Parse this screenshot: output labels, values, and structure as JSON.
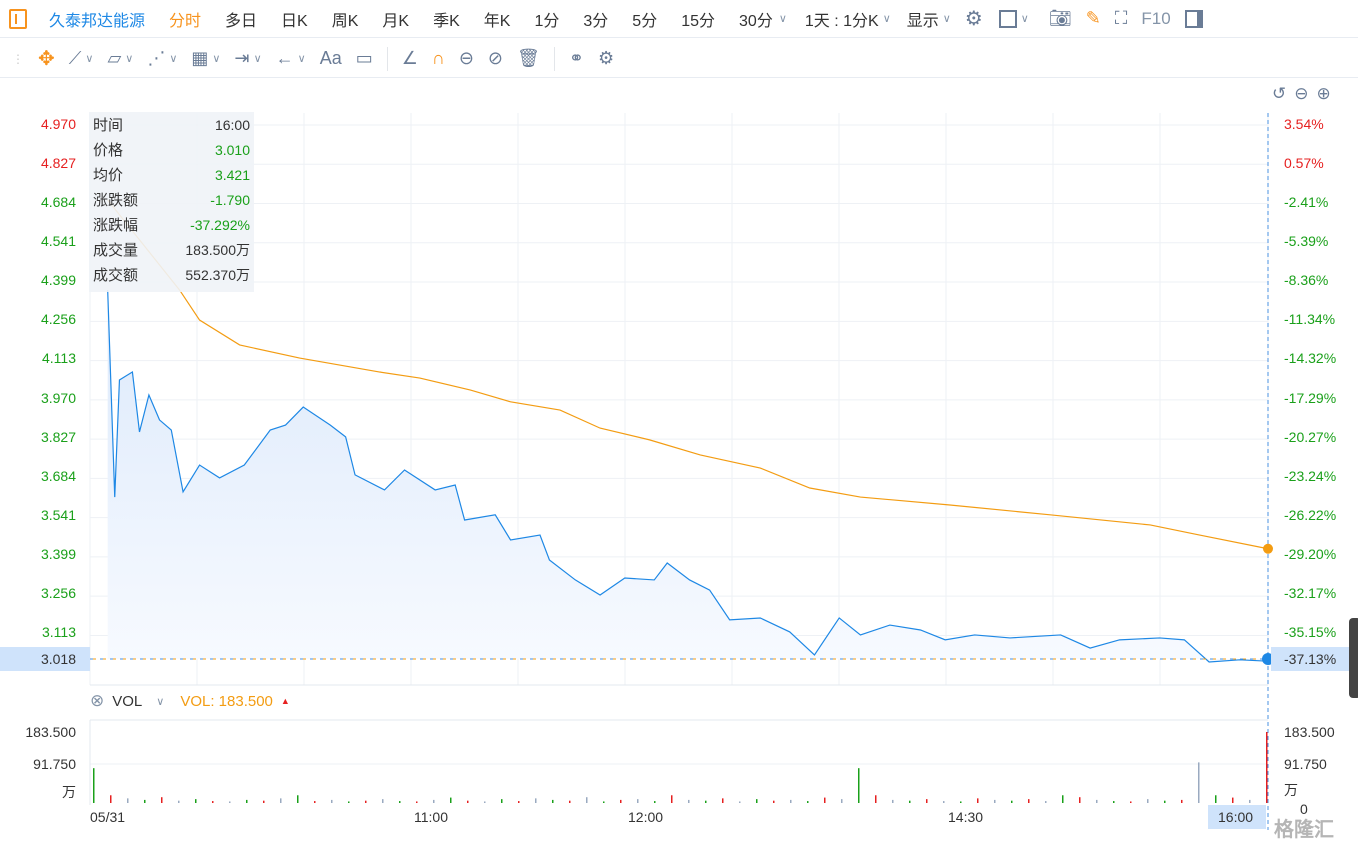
{
  "header": {
    "stock_name": "久泰邦达能源",
    "tabs": [
      "分时",
      "多日",
      "日K",
      "周K",
      "月K",
      "季K",
      "年K",
      "1分",
      "3分",
      "5分",
      "15分",
      "30分"
    ],
    "active_tab": "分时",
    "period_select": "1天 : 1分K",
    "display_select": "显示",
    "f10": "F10"
  },
  "toolbar": {
    "text_tool": "Aa"
  },
  "tooltip": {
    "rows": [
      {
        "label": "时间",
        "value": "16:00"
      },
      {
        "label": "价格",
        "value": "3.010"
      },
      {
        "label": "均价",
        "value": "3.421"
      },
      {
        "label": "涨跌额",
        "value": "-1.790"
      },
      {
        "label": "涨跌幅",
        "value": "-37.292%"
      },
      {
        "label": "成交量",
        "value": "183.500万"
      },
      {
        "label": "成交额",
        "value": "552.370万"
      }
    ]
  },
  "volume_panel": {
    "indicator": "VOL",
    "value_label": "VOL: 183.500",
    "axis_top": "183.500",
    "axis_mid": "91.750",
    "unit": "万",
    "axis_zero": "0"
  },
  "current": {
    "price": "3.018",
    "pct": "-37.13%"
  },
  "watermark": "格隆汇",
  "colors": {
    "up": "#e62020",
    "down": "#1aa01a",
    "price_line": "#1e88e5",
    "avg_line": "#f39c12",
    "accent": "#f7931e",
    "link": "#1e88e5"
  },
  "chart_data": {
    "type": "line",
    "price_axis": [
      "4.970",
      "4.827",
      "4.684",
      "4.541",
      "4.399",
      "4.256",
      "4.113",
      "3.970",
      "3.827",
      "3.684",
      "3.541",
      "3.399",
      "3.256",
      "3.113"
    ],
    "pct_axis": [
      "3.54%",
      "0.57%",
      "-2.41%",
      "-5.39%",
      "-8.36%",
      "-11.34%",
      "-14.32%",
      "-17.29%",
      "-20.27%",
      "-23.24%",
      "-26.22%",
      "-29.20%",
      "-32.17%",
      "-35.15%"
    ],
    "ylim": [
      3.018,
      4.97
    ],
    "x_ticks": [
      "05/31",
      "11:00",
      "12:00",
      "14:30",
      "16:00"
    ],
    "price": [
      4.367,
      3.61,
      4.038,
      4.067,
      3.848,
      3.983,
      3.892,
      3.855,
      3.629,
      3.727,
      3.68,
      3.727,
      3.855,
      3.873,
      3.939,
      3.873,
      3.83,
      3.691,
      3.636,
      3.709,
      3.636,
      3.654,
      3.526,
      3.545,
      3.453,
      3.471,
      3.38,
      3.307,
      3.252,
      3.314,
      3.307,
      3.369,
      3.307,
      3.27,
      3.161,
      3.168,
      3.117,
      3.033,
      3.168,
      3.106,
      3.142,
      3.124,
      3.088,
      3.106,
      3.095,
      3.106,
      3.058,
      3.088,
      3.095,
      3.088,
      3.007,
      3.015,
      3.01
    ],
    "price_pos": [
      0.015,
      0.021,
      0.025,
      0.036,
      0.042,
      0.05,
      0.059,
      0.069,
      0.079,
      0.093,
      0.11,
      0.131,
      0.153,
      0.166,
      0.181,
      0.204,
      0.217,
      0.225,
      0.25,
      0.267,
      0.293,
      0.31,
      0.318,
      0.344,
      0.357,
      0.382,
      0.39,
      0.412,
      0.433,
      0.454,
      0.479,
      0.49,
      0.509,
      0.526,
      0.543,
      0.569,
      0.594,
      0.615,
      0.636,
      0.654,
      0.679,
      0.705,
      0.726,
      0.751,
      0.781,
      0.824,
      0.849,
      0.874,
      0.908,
      0.929,
      0.95,
      0.976,
      1.0
    ],
    "avg": [
      4.696,
      4.367,
      4.257,
      4.166,
      4.118,
      4.067,
      4.045,
      4.001,
      3.958,
      3.928,
      3.862,
      3.819,
      3.764,
      3.716,
      3.643,
      3.61,
      3.581,
      3.545,
      3.508,
      3.471,
      3.421
    ],
    "avg_pos": [
      0.015,
      0.076,
      0.093,
      0.127,
      0.178,
      0.246,
      0.28,
      0.323,
      0.357,
      0.399,
      0.433,
      0.475,
      0.518,
      0.569,
      0.611,
      0.654,
      0.73,
      0.815,
      0.9,
      0.942,
      1.0
    ],
    "volume": [
      90,
      20,
      12,
      8,
      15,
      6,
      10,
      5,
      4,
      8,
      6,
      12,
      20,
      5,
      8,
      4,
      6,
      10,
      5,
      4,
      8,
      14,
      6,
      4,
      10,
      5,
      12,
      8,
      6,
      15,
      4,
      8,
      10,
      5,
      20,
      8,
      6,
      12,
      4,
      10,
      6,
      8,
      5,
      14,
      10,
      90,
      20,
      8,
      6,
      10,
      5,
      4,
      12,
      8,
      6,
      10,
      5,
      20,
      15,
      8,
      5,
      4,
      10,
      6,
      8,
      105,
      20,
      14,
      8,
      183.5
    ]
  }
}
